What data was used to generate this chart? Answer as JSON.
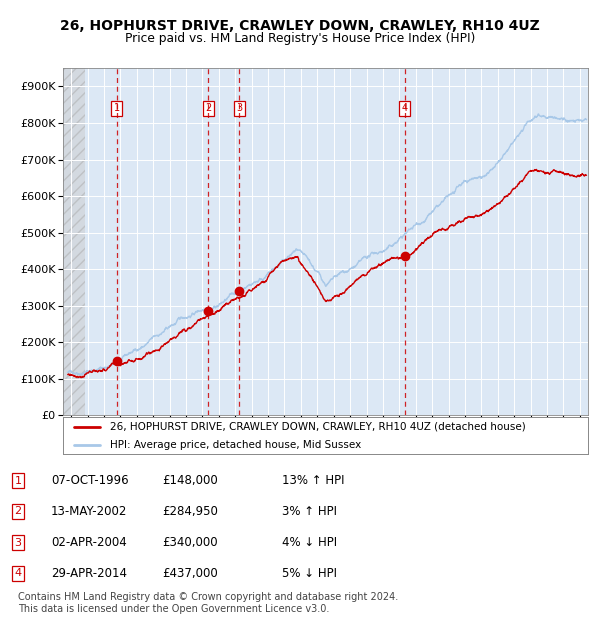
{
  "title": "26, HOPHURST DRIVE, CRAWLEY DOWN, CRAWLEY, RH10 4UZ",
  "subtitle": "Price paid vs. HM Land Registry's House Price Index (HPI)",
  "hpi_color": "#a8c8e8",
  "price_color": "#cc0000",
  "plot_bg_color": "#dce8f5",
  "ylim": [
    0,
    950000
  ],
  "yticks": [
    0,
    100000,
    200000,
    300000,
    400000,
    500000,
    600000,
    700000,
    800000,
    900000
  ],
  "ytick_labels": [
    "£0",
    "£100K",
    "£200K",
    "£300K",
    "£400K",
    "£500K",
    "£600K",
    "£700K",
    "£800K",
    "£900K"
  ],
  "xlim_start": 1993.5,
  "xlim_end": 2025.5,
  "sales": [
    {
      "num": 1,
      "date": "07-OCT-1996",
      "year": 1996.77,
      "price": 148000,
      "pct": "13%",
      "dir": "↑"
    },
    {
      "num": 2,
      "date": "13-MAY-2002",
      "year": 2002.36,
      "price": 284950,
      "pct": "3%",
      "dir": "↑"
    },
    {
      "num": 3,
      "date": "02-APR-2004",
      "year": 2004.25,
      "price": 340000,
      "pct": "4%",
      "dir": "↓"
    },
    {
      "num": 4,
      "date": "29-APR-2014",
      "year": 2014.32,
      "price": 437000,
      "pct": "5%",
      "dir": "↓"
    }
  ],
  "legend_entries": [
    "26, HOPHURST DRIVE, CRAWLEY DOWN, CRAWLEY, RH10 4UZ (detached house)",
    "HPI: Average price, detached house, Mid Sussex"
  ],
  "footer": "Contains HM Land Registry data © Crown copyright and database right 2024.\nThis data is licensed under the Open Government Licence v3.0."
}
